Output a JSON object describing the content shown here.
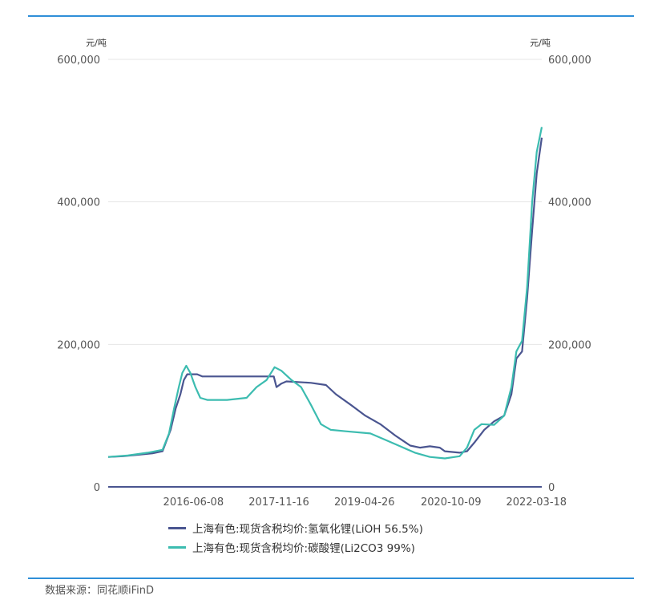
{
  "chart_data": {
    "type": "line",
    "y_unit_left": "元/吨",
    "y_unit_right": "元/吨",
    "ylim": [
      0,
      600000
    ],
    "y_ticks": [
      0,
      200000,
      400000,
      600000
    ],
    "y_tick_labels": [
      "0",
      "200,000",
      "400,000",
      "600,000"
    ],
    "x_range": [
      "2015-01-01",
      "2022-04-20"
    ],
    "x_ticks": [
      "2016-06-08",
      "2017-11-16",
      "2019-04-26",
      "2020-10-09",
      "2022-03-18"
    ],
    "grid": true,
    "legend_position": "bottom",
    "series": [
      {
        "name": "上海有色:现货含税均价:氢氧化锂(LiOH 56.5%)",
        "color": "#4a5590",
        "points": [
          [
            "2015-01-01",
            42000
          ],
          [
            "2015-04-01",
            43000
          ],
          [
            "2015-07-01",
            45000
          ],
          [
            "2015-10-01",
            47000
          ],
          [
            "2015-12-01",
            50000
          ],
          [
            "2016-01-20",
            80000
          ],
          [
            "2016-02-20",
            110000
          ],
          [
            "2016-03-20",
            130000
          ],
          [
            "2016-04-10",
            150000
          ],
          [
            "2016-05-01",
            158000
          ],
          [
            "2016-07-01",
            158000
          ],
          [
            "2016-08-01",
            155000
          ],
          [
            "2017-01-01",
            155000
          ],
          [
            "2017-06-01",
            155000
          ],
          [
            "2017-10-15",
            155000
          ],
          [
            "2017-11-01",
            140000
          ],
          [
            "2017-12-01",
            145000
          ],
          [
            "2018-01-01",
            148000
          ],
          [
            "2018-06-01",
            146000
          ],
          [
            "2018-09-01",
            143000
          ],
          [
            "2018-11-01",
            130000
          ],
          [
            "2019-02-01",
            115000
          ],
          [
            "2019-05-01",
            100000
          ],
          [
            "2019-08-01",
            88000
          ],
          [
            "2019-11-01",
            72000
          ],
          [
            "2020-02-01",
            58000
          ],
          [
            "2020-04-01",
            55000
          ],
          [
            "2020-06-01",
            57000
          ],
          [
            "2020-08-01",
            55000
          ],
          [
            "2020-09-01",
            50000
          ],
          [
            "2020-12-01",
            48000
          ],
          [
            "2021-01-15",
            50000
          ],
          [
            "2021-03-01",
            62000
          ],
          [
            "2021-05-01",
            80000
          ],
          [
            "2021-07-01",
            92000
          ],
          [
            "2021-09-01",
            100000
          ],
          [
            "2021-10-15",
            130000
          ],
          [
            "2021-11-15",
            180000
          ],
          [
            "2021-12-20",
            190000
          ],
          [
            "2022-01-20",
            265000
          ],
          [
            "2022-02-20",
            360000
          ],
          [
            "2022-03-20",
            440000
          ],
          [
            "2022-04-20",
            490000
          ]
        ]
      },
      {
        "name": "上海有色:现货含税均价:碳酸锂(Li2CO3 99%)",
        "color": "#3cbcb0",
        "points": [
          [
            "2015-01-01",
            42000
          ],
          [
            "2015-05-01",
            44000
          ],
          [
            "2015-09-01",
            48000
          ],
          [
            "2015-12-01",
            52000
          ],
          [
            "2016-01-10",
            75000
          ],
          [
            "2016-02-10",
            110000
          ],
          [
            "2016-03-10",
            140000
          ],
          [
            "2016-04-01",
            160000
          ],
          [
            "2016-04-25",
            170000
          ],
          [
            "2016-05-20",
            160000
          ],
          [
            "2016-06-20",
            140000
          ],
          [
            "2016-07-20",
            125000
          ],
          [
            "2016-09-01",
            122000
          ],
          [
            "2017-01-01",
            122000
          ],
          [
            "2017-05-01",
            125000
          ],
          [
            "2017-07-01",
            140000
          ],
          [
            "2017-09-01",
            150000
          ],
          [
            "2017-10-20",
            168000
          ],
          [
            "2017-12-01",
            163000
          ],
          [
            "2018-02-01",
            150000
          ],
          [
            "2018-04-01",
            140000
          ],
          [
            "2018-06-01",
            115000
          ],
          [
            "2018-08-01",
            88000
          ],
          [
            "2018-10-01",
            80000
          ],
          [
            "2019-01-01",
            78000
          ],
          [
            "2019-06-01",
            75000
          ],
          [
            "2019-09-01",
            66000
          ],
          [
            "2019-12-01",
            57000
          ],
          [
            "2020-03-01",
            48000
          ],
          [
            "2020-06-01",
            42000
          ],
          [
            "2020-09-01",
            40000
          ],
          [
            "2020-12-01",
            43000
          ],
          [
            "2021-01-15",
            55000
          ],
          [
            "2021-03-01",
            80000
          ],
          [
            "2021-04-15",
            88000
          ],
          [
            "2021-07-01",
            87000
          ],
          [
            "2021-09-01",
            100000
          ],
          [
            "2021-10-15",
            140000
          ],
          [
            "2021-11-15",
            190000
          ],
          [
            "2021-12-20",
            205000
          ],
          [
            "2022-01-20",
            280000
          ],
          [
            "2022-02-20",
            400000
          ],
          [
            "2022-03-20",
            470000
          ],
          [
            "2022-04-20",
            505000
          ]
        ]
      }
    ]
  },
  "footer": {
    "source": "数据来源：同花顺iFinD"
  }
}
